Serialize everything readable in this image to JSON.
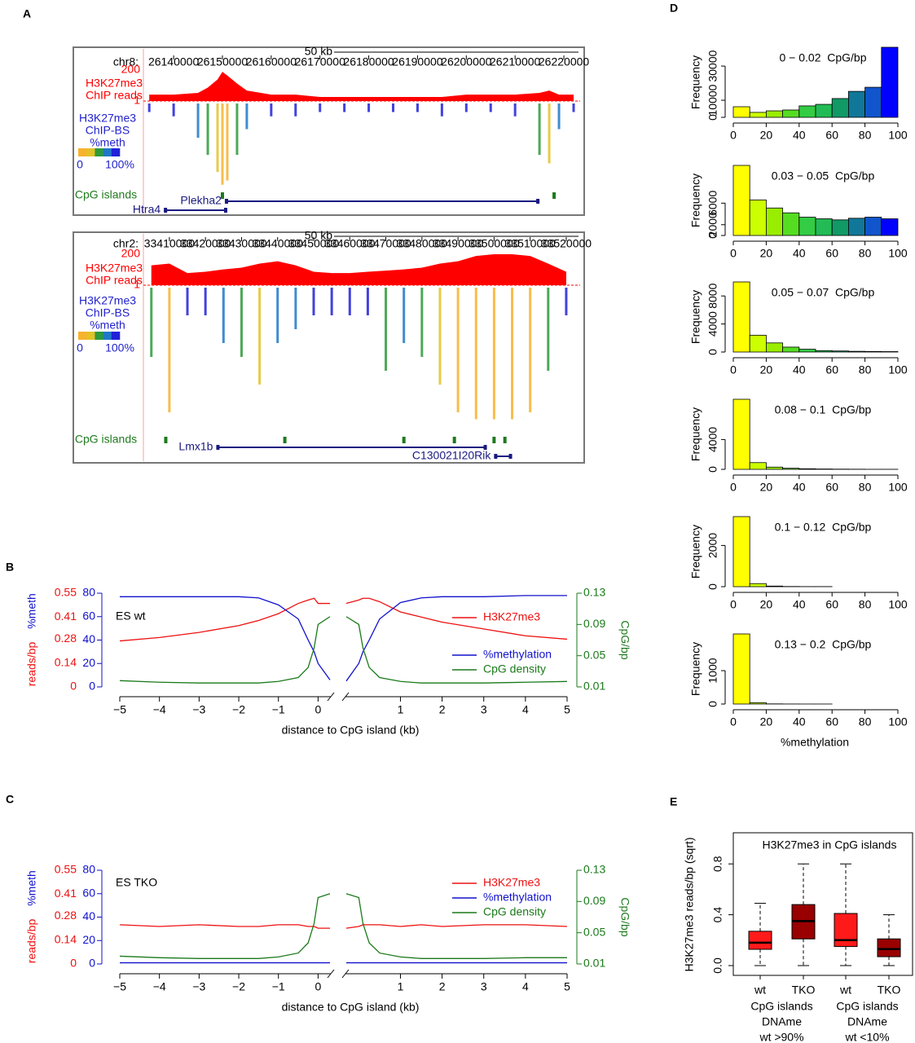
{
  "chart_data": [
    {
      "type": "genome-track",
      "panel": "A",
      "chrom": "chr8:",
      "scale_label": "50 kb",
      "xlim": [
        26133800,
        26223000
      ],
      "xticks": [
        26140000,
        26150000,
        26160000,
        26170000,
        26180000,
        26190000,
        26200000,
        26210000,
        26220000
      ],
      "log_scale": true,
      "signal_ylim": [
        1,
        200
      ],
      "signal_yticks": [
        1,
        200
      ],
      "signal_label": [
        "H3K27me3",
        "ChIP reads"
      ],
      "signal_color": "#ff0000",
      "meth_label": [
        "H3K27me3",
        "ChIP-BS",
        "%meth"
      ],
      "meth_color": "#2222cc",
      "colorbar": [
        "#f7b22e",
        "#e3c22a",
        "#2e9a3a",
        "#1f78c8",
        "#2121d8"
      ],
      "colorbar_labels": [
        "0",
        "100%"
      ],
      "cpg_label": "CpG islands",
      "cpg_color": "#1e7a1e",
      "x": [
        26135000,
        26140000,
        26145000,
        26147000,
        26149000,
        26150000,
        26151000,
        26153000,
        26155000,
        26160000,
        26165000,
        26170000,
        26175000,
        26180000,
        26185000,
        26190000,
        26195000,
        26200000,
        26205000,
        26210000,
        26215000,
        26217000,
        26219000,
        26222000
      ],
      "chip_values": [
        3,
        3,
        4,
        10,
        40,
        150,
        80,
        20,
        6,
        3,
        3,
        2,
        2,
        2,
        2,
        2,
        2,
        3,
        3,
        3,
        4,
        6,
        3,
        3
      ],
      "meth_values": [
        90,
        85,
        60,
        40,
        20,
        5,
        10,
        40,
        70,
        85,
        85,
        90,
        90,
        90,
        90,
        90,
        85,
        90,
        90,
        85,
        40,
        30,
        70,
        90
      ],
      "cpg_islands": [
        26150000,
        26218000
      ],
      "genes": [
        {
          "name": "Plekha2",
          "start": 26150500,
          "end": 26215000
        },
        {
          "name": "Htra4",
          "start": 26138000,
          "end": 26151000
        }
      ]
    },
    {
      "type": "genome-track",
      "chrom": "chr2:",
      "scale_label": "50 kb",
      "xlim": [
        33402800,
        33523400
      ],
      "xticks": [
        33410000,
        33420000,
        33430000,
        33440000,
        33450000,
        33460000,
        33470000,
        33480000,
        33490000,
        33500000,
        33510000,
        33520000
      ],
      "log_scale": true,
      "signal_ylim": [
        1,
        200
      ],
      "signal_yticks": [
        1,
        200
      ],
      "signal_label": [
        "H3K27me3",
        "ChIP reads"
      ],
      "signal_color": "#ff0000",
      "meth_label": [
        "H3K27me3",
        "ChIP-BS",
        "%meth"
      ],
      "meth_color": "#2222cc",
      "colorbar": [
        "#f7b22e",
        "#e3c22a",
        "#2e9a3a",
        "#1f78c8",
        "#2121d8"
      ],
      "colorbar_labels": [
        "0",
        "100%"
      ],
      "cpg_label": "CpG islands",
      "cpg_color": "#1e7a1e",
      "x": [
        33405000,
        33410000,
        33415000,
        33420000,
        33425000,
        33430000,
        33435000,
        33440000,
        33445000,
        33450000,
        33455000,
        33460000,
        33465000,
        33470000,
        33475000,
        33480000,
        33485000,
        33490000,
        33495000,
        33500000,
        33505000,
        33510000,
        33515000,
        33520000
      ],
      "chip_values": [
        30,
        40,
        8,
        10,
        15,
        20,
        40,
        60,
        30,
        10,
        8,
        8,
        10,
        12,
        15,
        20,
        40,
        60,
        150,
        200,
        200,
        150,
        40,
        10
      ],
      "meth_values": [
        50,
        10,
        80,
        80,
        60,
        50,
        30,
        60,
        70,
        80,
        80,
        80,
        80,
        40,
        60,
        50,
        30,
        10,
        5,
        5,
        5,
        10,
        40,
        80
      ],
      "cpg_islands": [
        33409000,
        33442000,
        33475000,
        33489000,
        33500000,
        33503000
      ],
      "genes": [
        {
          "name": "Lmx1b",
          "start": 33423000,
          "end": 33498000
        },
        {
          "name": "C130021I20Rik",
          "start": 33500000,
          "end": 33505000
        }
      ]
    },
    {
      "type": "line",
      "panel": "B",
      "title": "ES wt",
      "xlabel": "distance to CpG island (kb)",
      "xlims": [
        [
          -5,
          0.3
        ],
        [
          -0.3,
          5
        ]
      ],
      "xticks": [
        {
          "value": -5,
          "label": "−5"
        },
        {
          "value": -4,
          "label": "−4"
        },
        {
          "value": -3,
          "label": "−3"
        },
        {
          "value": -2,
          "label": "−2"
        },
        {
          "value": -1,
          "label": "−1"
        },
        0,
        1,
        2,
        3,
        4,
        5
      ],
      "x": [
        [
          -5,
          -4,
          -3,
          -2,
          -1.5,
          -1,
          -0.5,
          -0.25,
          -0.1,
          0,
          0.3
        ],
        [
          -0.3,
          0,
          0.1,
          0.25,
          0.5,
          1,
          1.5,
          2,
          3,
          4,
          5
        ]
      ],
      "y_axes": [
        {
          "label": "reads/bp",
          "color": "#ee1111",
          "ylim": [
            0,
            0.55
          ],
          "yticks": [
            0,
            0.14,
            0.28,
            0.41,
            0.55
          ]
        },
        {
          "label": "%meth",
          "color": "#1111cc",
          "ylim": [
            0,
            80
          ],
          "yticks": [
            0,
            20,
            40,
            60,
            80
          ]
        },
        {
          "label": "CpG/bp",
          "color": "#1a7a1a",
          "ylim": [
            0.01,
            0.13
          ],
          "yticks": [
            0.01,
            0.05,
            0.09,
            0.13
          ]
        }
      ],
      "series": [
        {
          "name": "H3K27me3",
          "color": "#ee1111",
          "axis": 0,
          "values": [
            [
              0.27,
              0.29,
              0.32,
              0.36,
              0.39,
              0.43,
              0.49,
              0.51,
              0.52,
              0.49,
              0.49
            ],
            [
              0.49,
              0.51,
              0.52,
              0.52,
              0.5,
              0.44,
              0.41,
              0.38,
              0.34,
              0.3,
              0.28
            ]
          ]
        },
        {
          "name": "%methylation",
          "color": "#1111cc",
          "axis": 1,
          "values": [
            [
              77,
              77,
              77,
              77,
              76,
              70,
              58,
              40,
              30,
              20,
              6
            ],
            [
              5,
              20,
              30,
              40,
              58,
              72,
              76,
              77,
              77,
              78,
              78
            ]
          ]
        },
        {
          "name": "CpG density",
          "color": "#1a7a1a",
          "axis": 2,
          "values": [
            [
              0.018,
              0.016,
              0.015,
              0.015,
              0.015,
              0.017,
              0.022,
              0.035,
              0.06,
              0.09,
              0.1
            ],
            [
              0.1,
              0.09,
              0.06,
              0.035,
              0.022,
              0.017,
              0.015,
              0.015,
              0.015,
              0.016,
              0.017
            ]
          ]
        }
      ]
    },
    {
      "type": "line",
      "panel": "C",
      "title": "ES TKO",
      "xlabel": "distance to CpG island (kb)",
      "xlims": [
        [
          -5,
          0.3
        ],
        [
          -0.3,
          5
        ]
      ],
      "xticks": [
        {
          "value": -5,
          "label": "−5"
        },
        {
          "value": -4,
          "label": "−4"
        },
        {
          "value": -3,
          "label": "−3"
        },
        {
          "value": -2,
          "label": "−2"
        },
        {
          "value": -1,
          "label": "−1"
        },
        0,
        1,
        2,
        3,
        4,
        5
      ],
      "x": [
        [
          -5,
          -4,
          -3,
          -2,
          -1.5,
          -1,
          -0.5,
          -0.25,
          -0.1,
          0,
          0.3
        ],
        [
          -0.3,
          0,
          0.1,
          0.25,
          0.5,
          1,
          1.5,
          2,
          3,
          4,
          5
        ]
      ],
      "y_axes": [
        {
          "label": "reads/bp",
          "color": "#ee1111",
          "ylim": [
            0,
            0.55
          ],
          "yticks": [
            0,
            0.14,
            0.28,
            0.41,
            0.55
          ]
        },
        {
          "label": "%meth",
          "color": "#1111cc",
          "ylim": [
            0,
            80
          ],
          "yticks": [
            0,
            20,
            40,
            60,
            80
          ]
        },
        {
          "label": "CpG/bp",
          "color": "#1a7a1a",
          "ylim": [
            0.01,
            0.13
          ],
          "yticks": [
            0.01,
            0.05,
            0.09,
            0.13
          ]
        }
      ],
      "series": [
        {
          "name": "H3K27me3",
          "color": "#ee1111",
          "axis": 0,
          "values": [
            [
              0.23,
              0.22,
              0.23,
              0.22,
              0.22,
              0.23,
              0.23,
              0.22,
              0.22,
              0.21,
              0.21
            ],
            [
              0.21,
              0.22,
              0.23,
              0.23,
              0.23,
              0.22,
              0.23,
              0.22,
              0.23,
              0.23,
              0.22
            ]
          ]
        },
        {
          "name": "%methylation",
          "color": "#1111cc",
          "axis": 1,
          "values": [
            [
              1,
              1,
              1,
              1,
              1,
              1,
              1,
              1,
              1,
              1,
              1
            ],
            [
              1,
              1,
              1,
              1,
              1,
              1,
              1,
              1,
              1,
              1,
              1
            ]
          ]
        },
        {
          "name": "CpG density",
          "color": "#1a7a1a",
          "axis": 2,
          "values": [
            [
              0.02,
              0.018,
              0.017,
              0.017,
              0.017,
              0.019,
              0.024,
              0.037,
              0.062,
              0.095,
              0.1
            ],
            [
              0.1,
              0.095,
              0.062,
              0.037,
              0.024,
              0.019,
              0.017,
              0.017,
              0.017,
              0.018,
              0.018
            ]
          ]
        }
      ]
    },
    {
      "type": "histogram",
      "panel": "D",
      "subtitle": "0 − 0.02  CpG/bp",
      "ylabel": "Frequency",
      "bins": [
        0,
        10,
        20,
        30,
        40,
        50,
        60,
        70,
        80,
        90,
        100
      ],
      "counts": [
        6200,
        2900,
        3800,
        4300,
        6700,
        7600,
        11000,
        15200,
        17600,
        41000
      ],
      "colors": [
        "#ffff00",
        "#ccff00",
        "#99ee00",
        "#55dd22",
        "#33cc44",
        "#22bb55",
        "#119966",
        "#117799",
        "#1155cc",
        "#0000ff"
      ],
      "ylim": [
        0,
        41000
      ],
      "yticks": [
        0,
        10000,
        30000
      ],
      "xlim": [
        0,
        100
      ],
      "xticks": [
        0,
        20,
        40,
        60,
        80,
        100
      ]
    },
    {
      "type": "histogram",
      "subtitle": "0.03 − 0.05  CpG/bp",
      "ylabel": "Frequency",
      "bins": [
        0,
        10,
        20,
        30,
        40,
        50,
        60,
        70,
        80,
        90,
        100
      ],
      "counts": [
        13000,
        6600,
        5100,
        4200,
        3400,
        3100,
        2900,
        3200,
        3400,
        3100
      ],
      "colors": [
        "#ffff00",
        "#ccff00",
        "#99ee00",
        "#55dd22",
        "#33cc44",
        "#22bb55",
        "#119966",
        "#117799",
        "#1155cc",
        "#0000ff"
      ],
      "ylim": [
        0,
        13000
      ],
      "yticks": [
        0,
        2000,
        6000
      ],
      "xlim": [
        0,
        100
      ],
      "xticks": [
        0,
        20,
        40,
        60,
        80,
        100
      ]
    },
    {
      "type": "histogram",
      "subtitle": "0.05 − 0.07  CpG/bp",
      "ylabel": "Frequency",
      "bins": [
        0,
        10,
        20,
        30,
        40,
        50,
        60,
        70,
        80,
        90,
        100
      ],
      "counts": [
        10000,
        2400,
        1300,
        700,
        400,
        200,
        150,
        100,
        80,
        60
      ],
      "colors": [
        "#ffff00",
        "#ccff00",
        "#99ee00",
        "#55dd22",
        "#33cc44",
        "#22bb55",
        "#119966",
        "#117799",
        "#1155cc",
        "#0000ff"
      ],
      "ylim": [
        0,
        10000
      ],
      "yticks": [
        0,
        4000,
        8000
      ],
      "xlim": [
        0,
        100
      ],
      "xticks": [
        0,
        20,
        40,
        60,
        80,
        100
      ]
    },
    {
      "type": "histogram",
      "subtitle": "0.08 − 0.1  CpG/bp",
      "ylabel": "Frequency",
      "bins": [
        0,
        10,
        20,
        30,
        40,
        50,
        60,
        70,
        80,
        90,
        100
      ],
      "counts": [
        9400,
        900,
        300,
        150,
        80,
        50,
        30,
        20,
        10,
        10
      ],
      "colors": [
        "#ffff00",
        "#ccff00",
        "#99ee00",
        "#55dd22",
        "#33cc44",
        "#22bb55",
        "#119966",
        "#117799",
        "#1155cc",
        "#0000ff"
      ],
      "ylim": [
        0,
        9400
      ],
      "yticks": [
        0,
        4000
      ],
      "xlim": [
        0,
        100
      ],
      "xticks": [
        0,
        20,
        40,
        60,
        80,
        100
      ]
    },
    {
      "type": "histogram",
      "subtitle": "0.1 − 0.12  CpG/bp",
      "ylabel": "Frequency",
      "bins": [
        0,
        10,
        20,
        30,
        40,
        50,
        60,
        70,
        80,
        90,
        100
      ],
      "counts": [
        3400,
        150,
        30,
        10,
        5,
        5,
        0,
        0,
        0,
        0
      ],
      "colors": [
        "#ffff00",
        "#ccff00",
        "#99ee00",
        "#55dd22",
        "#33cc44",
        "#22bb55",
        "#119966",
        "#117799",
        "#1155cc",
        "#0000ff"
      ],
      "ylim": [
        0,
        3400
      ],
      "yticks": [
        0,
        2000
      ],
      "xlim": [
        0,
        100
      ],
      "xticks": [
        0,
        20,
        40,
        60,
        80,
        100
      ]
    },
    {
      "type": "histogram",
      "subtitle": "0.13 − 0.2  CpG/bp",
      "ylabel": "Frequency",
      "xlabel": "%methylation",
      "bins": [
        0,
        10,
        20,
        30,
        40,
        50,
        60,
        70,
        80,
        90,
        100
      ],
      "counts": [
        2100,
        40,
        5,
        2,
        1,
        1,
        0,
        0,
        0,
        0
      ],
      "colors": [
        "#ffff00",
        "#ccff00",
        "#99ee00",
        "#55dd22",
        "#33cc44",
        "#22bb55",
        "#119966",
        "#117799",
        "#1155cc",
        "#0000ff"
      ],
      "ylim": [
        0,
        2100
      ],
      "yticks": [
        0,
        1000
      ],
      "xlim": [
        0,
        100
      ],
      "xticks": [
        0,
        20,
        40,
        60,
        80,
        100
      ]
    },
    {
      "type": "box",
      "panel": "E",
      "title": "H3K27me3 in CpG islands",
      "ylabel": "H3K27me3 reads/bp (sqrt)",
      "ylim": [
        -0.077,
        1.045
      ],
      "yticks": [
        {
          "value": 0,
          "label": "0.0"
        },
        {
          "value": 0.4,
          "label": "0.4"
        },
        {
          "value": 0.8,
          "label": "0.8"
        }
      ],
      "categories": [
        "wt",
        "TKO",
        "wt",
        "TKO"
      ],
      "groups": [
        [
          "CpG islands",
          "DNAme",
          "wt >90%"
        ],
        [
          "CpG islands",
          "DNAme",
          "wt <10%"
        ]
      ],
      "boxes": [
        {
          "color": "#ff1a1a",
          "whisker_low": 0,
          "q1": 0.128,
          "median": 0.18,
          "q3": 0.27,
          "whisker_high": 0.49
        },
        {
          "color": "#990000",
          "whisker_low": 0,
          "q1": 0.21,
          "median": 0.35,
          "q3": 0.48,
          "whisker_high": 0.8
        },
        {
          "color": "#ff1a1a",
          "whisker_low": 0,
          "q1": 0.15,
          "median": 0.2,
          "q3": 0.41,
          "whisker_high": 0.8
        },
        {
          "color": "#990000",
          "whisker_low": 0,
          "q1": 0.07,
          "median": 0.13,
          "q3": 0.21,
          "whisker_high": 0.4
        }
      ]
    }
  ]
}
